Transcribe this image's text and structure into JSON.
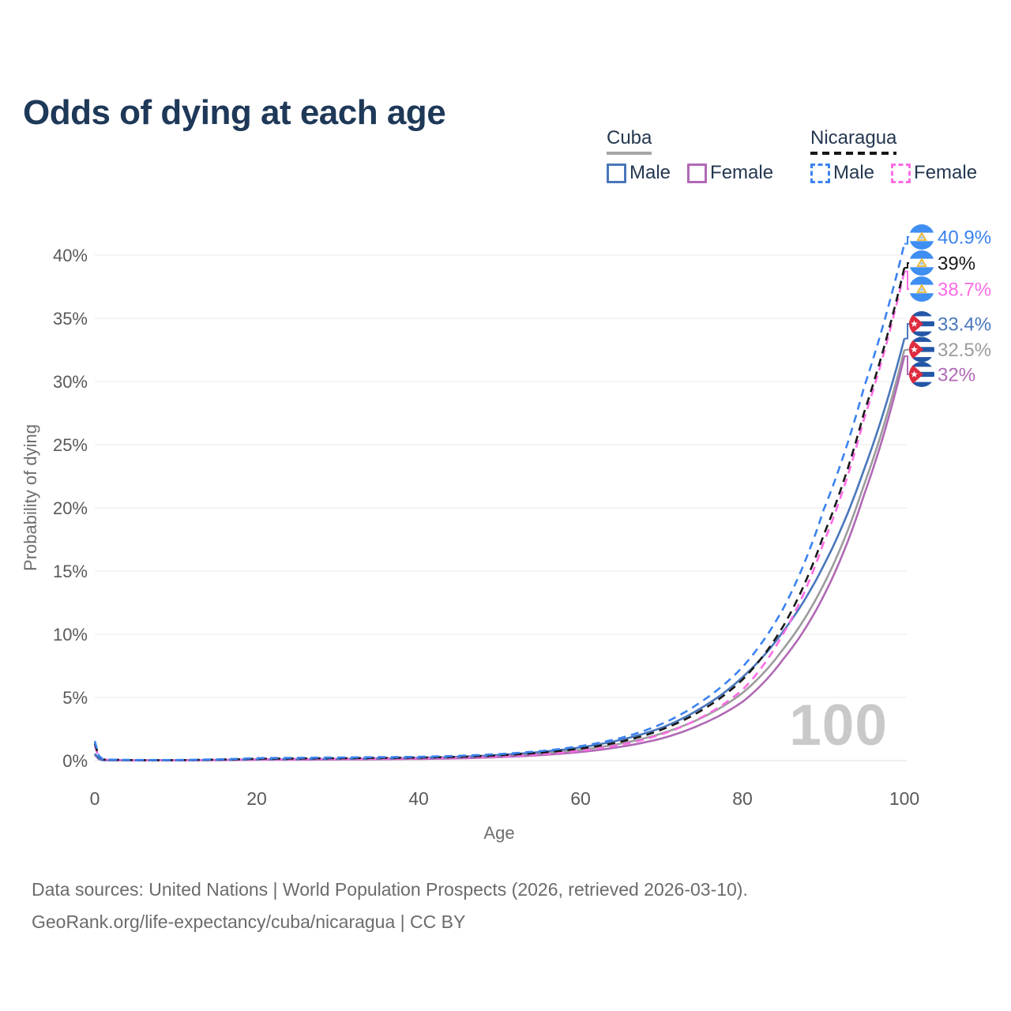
{
  "title": "Odds of dying at each age",
  "legend": {
    "cuba": {
      "name": "Cuba",
      "male": "Male",
      "female": "Female"
    },
    "nicaragua": {
      "name": "Nicaragua",
      "male": "Male",
      "female": "Female"
    }
  },
  "chart_data": {
    "type": "line",
    "title": "Odds of dying at each age",
    "xlabel": "Age",
    "ylabel": "Probability of dying",
    "xlim": [
      0,
      100
    ],
    "ylim_pct": [
      0,
      42
    ],
    "x_ticks": [
      0,
      20,
      40,
      60,
      80,
      100
    ],
    "y_tick_labels": [
      "0%",
      "5%",
      "10%",
      "15%",
      "20%",
      "25%",
      "30%",
      "35%",
      "40%"
    ],
    "grid": "horizontal-only",
    "legend_position": "top-right",
    "watermark": "100",
    "ages": [
      0,
      1,
      5,
      10,
      20,
      30,
      40,
      45,
      50,
      55,
      60,
      65,
      70,
      75,
      80,
      85,
      90,
      95,
      100
    ],
    "series": [
      {
        "id": "nicMale",
        "name": "Nicaragua Male",
        "country": "Nicaragua",
        "sex": "male",
        "line": "dashed",
        "color": "#3b82f0",
        "end_label": "40.9%",
        "end_value": 40.9,
        "flag": "nicaragua",
        "values": [
          1.55,
          0.1,
          0.05,
          0.05,
          0.2,
          0.25,
          0.3,
          0.38,
          0.52,
          0.75,
          1.15,
          1.8,
          2.9,
          4.7,
          7.4,
          12.0,
          19.8,
          29.5,
          40.9
        ]
      },
      {
        "id": "nicTotal",
        "name": "Nicaragua",
        "country": "Nicaragua",
        "sex": "total",
        "line": "dashed",
        "color": "#1a1a1a",
        "end_label": "39%",
        "end_value": 39.0,
        "flag": "nicaragua",
        "values": [
          1.35,
          0.09,
          0.04,
          0.04,
          0.15,
          0.19,
          0.24,
          0.3,
          0.42,
          0.62,
          0.95,
          1.5,
          2.45,
          4.0,
          6.4,
          10.6,
          17.8,
          27.5,
          39.0
        ]
      },
      {
        "id": "nicFemale",
        "name": "Nicaragua Female",
        "country": "Nicaragua",
        "sex": "female",
        "line": "dashed",
        "color": "#fb6ce4",
        "end_label": "38.7%",
        "end_value": 38.7,
        "flag": "nicaragua",
        "values": [
          1.15,
          0.08,
          0.035,
          0.03,
          0.1,
          0.13,
          0.18,
          0.24,
          0.33,
          0.5,
          0.78,
          1.26,
          2.08,
          3.45,
          5.6,
          10.0,
          17.2,
          27.0,
          38.7
        ]
      },
      {
        "id": "cubaMale",
        "name": "Cuba Male",
        "country": "Cuba",
        "sex": "male",
        "line": "solid",
        "color": "#4a77bb",
        "end_label": "33.4%",
        "end_value": 33.4,
        "flag": "cuba",
        "values": [
          0.55,
          0.04,
          0.025,
          0.03,
          0.1,
          0.14,
          0.22,
          0.3,
          0.45,
          0.68,
          1.05,
          1.65,
          2.6,
          4.2,
          6.6,
          10.2,
          15.4,
          23.0,
          33.4
        ]
      },
      {
        "id": "cubaTotal",
        "name": "Cuba",
        "country": "Cuba",
        "sex": "total",
        "line": "solid",
        "color": "#9c9c9c",
        "end_label": "32.5%",
        "end_value": 32.5,
        "flag": "cuba",
        "values": [
          0.5,
          0.035,
          0.02,
          0.025,
          0.08,
          0.11,
          0.17,
          0.24,
          0.36,
          0.55,
          0.85,
          1.35,
          2.15,
          3.4,
          5.35,
          8.8,
          13.9,
          21.8,
          32.5
        ]
      },
      {
        "id": "cubaFemale",
        "name": "Cuba Female",
        "country": "Cuba",
        "sex": "female",
        "line": "solid",
        "color": "#b069b5",
        "end_label": "32%",
        "end_value": 32.0,
        "flag": "cuba",
        "values": [
          0.45,
          0.03,
          0.015,
          0.02,
          0.06,
          0.09,
          0.13,
          0.18,
          0.28,
          0.43,
          0.68,
          1.1,
          1.75,
          2.9,
          4.65,
          8.0,
          13.0,
          21.0,
          32.0
        ]
      }
    ],
    "flag_colors": {
      "cuba_blue": "#2357a7",
      "cuba_red": "#de2c3f",
      "cuba_star": "#ffffff",
      "nicaragua_blue": "#3f8ef2",
      "nicaragua_gold": "#eab62f"
    }
  },
  "footer": {
    "line1": "Data sources: United Nations | World Population Prospects (2026, retrieved 2026-03-10).",
    "line2": "GeoRank.org/life-expectancy/cuba/nicaragua | CC BY"
  }
}
